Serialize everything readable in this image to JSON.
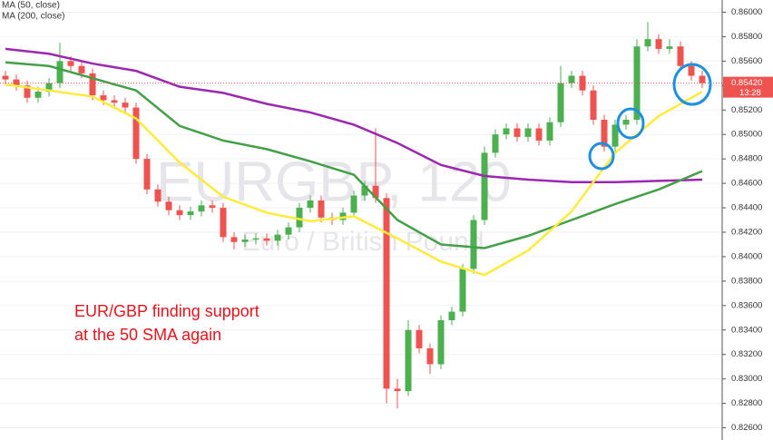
{
  "chart_data": {
    "type": "candlestick",
    "watermark": "EURGBP, 120",
    "watermark_subtitle": "Euro / British Pound",
    "annotation": [
      "EUR/GBP finding support",
      "at the 50 SMA again"
    ],
    "legend": [
      "MA (50, close)",
      "MA (200, close)"
    ],
    "up_color": "#4caf50",
    "down_color": "#ef5350",
    "current_price": {
      "value": 0.8542,
      "label": "0.85420"
    },
    "countdown": "13:28",
    "ylim": [
      0.825,
      0.861
    ],
    "yticks": [
      {
        "value": 0.826,
        "label": "0.82600"
      },
      {
        "value": 0.828,
        "label": "0.82800"
      },
      {
        "value": 0.83,
        "label": "0.83000"
      },
      {
        "value": 0.832,
        "label": "0.83200"
      },
      {
        "value": 0.834,
        "label": "0.83400"
      },
      {
        "value": 0.836,
        "label": "0.83600"
      },
      {
        "value": 0.838,
        "label": "0.83800"
      },
      {
        "value": 0.84,
        "label": "0.84000"
      },
      {
        "value": 0.842,
        "label": "0.84200"
      },
      {
        "value": 0.844,
        "label": "0.84400"
      },
      {
        "value": 0.846,
        "label": "0.84600"
      },
      {
        "value": 0.848,
        "label": "0.84800"
      },
      {
        "value": 0.85,
        "label": "0.85000"
      },
      {
        "value": 0.852,
        "label": "0.85200"
      },
      {
        "value": 0.854,
        "label": "0.85400"
      },
      {
        "value": 0.856,
        "label": "0.85600"
      },
      {
        "value": 0.858,
        "label": "0.85800"
      },
      {
        "value": 0.86,
        "label": "0.86000"
      }
    ],
    "open": [
      0.8548,
      0.8545,
      0.854,
      0.853,
      0.8535,
      0.8542,
      0.856,
      0.8556,
      0.855,
      0.8532,
      0.8528,
      0.8526,
      0.8522,
      0.848,
      0.8455,
      0.8445,
      0.8438,
      0.8434,
      0.8437,
      0.8442,
      0.844,
      0.8416,
      0.8412,
      0.8414,
      0.8415,
      0.8413,
      0.8418,
      0.8424,
      0.844,
      0.8446,
      0.8432,
      0.843,
      0.8436,
      0.845,
      0.8458,
      0.8448,
      0.8292,
      0.829,
      0.834,
      0.8325,
      0.8312,
      0.8348,
      0.8355,
      0.839,
      0.843,
      0.8485,
      0.85,
      0.8505,
      0.8498,
      0.8505,
      0.8495,
      0.851,
      0.8542,
      0.8548,
      0.8536,
      0.8512,
      0.849,
      0.8508,
      0.8512,
      0.8572,
      0.8578,
      0.857,
      0.8572,
      0.8556,
      0.8548
    ],
    "high": [
      0.8552,
      0.8549,
      0.8544,
      0.8539,
      0.8546,
      0.8575,
      0.8564,
      0.856,
      0.8554,
      0.8536,
      0.8532,
      0.853,
      0.8526,
      0.8484,
      0.8459,
      0.8449,
      0.8442,
      0.8441,
      0.8446,
      0.8446,
      0.8444,
      0.842,
      0.8418,
      0.8419,
      0.8419,
      0.8422,
      0.8428,
      0.8444,
      0.845,
      0.845,
      0.8436,
      0.844,
      0.8454,
      0.8462,
      0.8505,
      0.8452,
      0.83,
      0.8348,
      0.8344,
      0.8329,
      0.8352,
      0.8359,
      0.8394,
      0.8434,
      0.849,
      0.8504,
      0.8509,
      0.8509,
      0.8509,
      0.8509,
      0.8514,
      0.8556,
      0.8552,
      0.8552,
      0.854,
      0.8516,
      0.8512,
      0.8516,
      0.8578,
      0.8592,
      0.8582,
      0.8578,
      0.8576,
      0.856,
      0.8552
    ],
    "low": [
      0.8541,
      0.8536,
      0.8526,
      0.8526,
      0.8531,
      0.8538,
      0.8552,
      0.8546,
      0.8528,
      0.8524,
      0.8522,
      0.8518,
      0.8476,
      0.8451,
      0.8441,
      0.8434,
      0.843,
      0.843,
      0.8433,
      0.8436,
      0.8412,
      0.8406,
      0.8408,
      0.841,
      0.8409,
      0.8409,
      0.8414,
      0.842,
      0.8436,
      0.8428,
      0.8426,
      0.8426,
      0.8432,
      0.8446,
      0.8444,
      0.828,
      0.8276,
      0.8286,
      0.8321,
      0.8304,
      0.8308,
      0.8344,
      0.8351,
      0.8386,
      0.8426,
      0.8481,
      0.8496,
      0.8494,
      0.8494,
      0.8491,
      0.8491,
      0.8506,
      0.8538,
      0.8532,
      0.8508,
      0.8486,
      0.8486,
      0.8504,
      0.8508,
      0.8568,
      0.8566,
      0.8566,
      0.8552,
      0.8544,
      0.8538
    ],
    "close": [
      0.8545,
      0.854,
      0.853,
      0.8535,
      0.8542,
      0.856,
      0.8556,
      0.855,
      0.8532,
      0.8528,
      0.8526,
      0.8522,
      0.848,
      0.8455,
      0.8445,
      0.8438,
      0.8434,
      0.8437,
      0.8442,
      0.844,
      0.8416,
      0.8412,
      0.8414,
      0.8415,
      0.8413,
      0.8418,
      0.8424,
      0.844,
      0.8446,
      0.8432,
      0.843,
      0.8436,
      0.845,
      0.8458,
      0.8448,
      0.8292,
      0.829,
      0.834,
      0.8325,
      0.8312,
      0.8348,
      0.8355,
      0.839,
      0.843,
      0.8485,
      0.85,
      0.8505,
      0.8498,
      0.8505,
      0.8495,
      0.851,
      0.8542,
      0.8548,
      0.8536,
      0.8512,
      0.849,
      0.8508,
      0.8512,
      0.8572,
      0.8578,
      0.857,
      0.8572,
      0.8556,
      0.8548,
      0.8542
    ],
    "lines": [
      {
        "color": "#9c27b0",
        "x": [
          0,
          4,
          8,
          12,
          16,
          20,
          24,
          28,
          32,
          36,
          40,
          44,
          48,
          52,
          56,
          60,
          64
        ],
        "values": [
          0.857,
          0.8566,
          0.8558,
          0.8552,
          0.8539,
          0.8534,
          0.8525,
          0.8518,
          0.8508,
          0.8493,
          0.8475,
          0.8466,
          0.8463,
          0.8461,
          0.8461,
          0.8462,
          0.8463
        ]
      },
      {
        "color": "#43a047",
        "x": [
          0,
          4,
          8,
          12,
          16,
          20,
          24,
          28,
          32,
          36,
          40,
          44,
          48,
          52,
          56,
          60,
          64
        ],
        "values": [
          0.8559,
          0.8556,
          0.8546,
          0.8536,
          0.8507,
          0.8495,
          0.8488,
          0.8478,
          0.8467,
          0.843,
          0.841,
          0.8407,
          0.8417,
          0.843,
          0.8443,
          0.8455,
          0.847
        ]
      },
      {
        "color": "#ffeb3b",
        "x": [
          0,
          4,
          8,
          12,
          16,
          20,
          24,
          28,
          32,
          36,
          40,
          44,
          48,
          52,
          56,
          60,
          64
        ],
        "values": [
          0.8541,
          0.8536,
          0.8531,
          0.8513,
          0.8477,
          0.8449,
          0.8436,
          0.8429,
          0.8433,
          0.8415,
          0.8396,
          0.8385,
          0.8405,
          0.8437,
          0.8485,
          0.8515,
          0.8535
        ]
      }
    ]
  }
}
